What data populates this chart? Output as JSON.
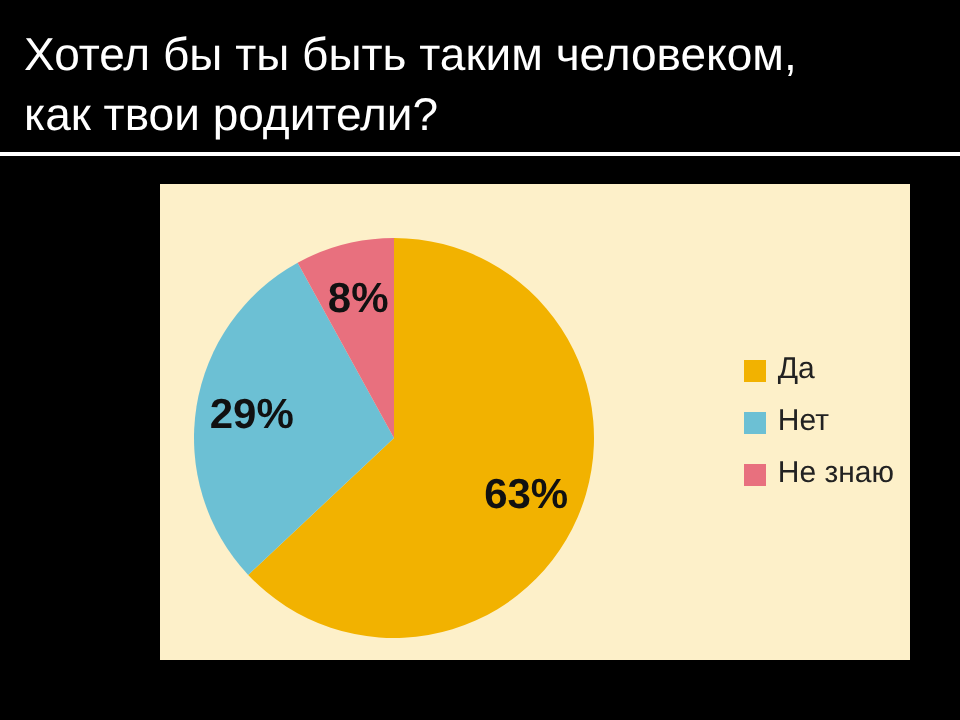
{
  "chart_data": {
    "type": "pie",
    "title": "Хотел бы ты быть таким человеком,\nкак твои родители?",
    "categories": [
      "Да",
      "Нет",
      "Не знаю"
    ],
    "values": [
      63,
      29,
      8
    ],
    "colors": [
      "#f2b200",
      "#6cc0d4",
      "#e8707e"
    ],
    "value_labels": [
      "63%",
      "29%",
      "8%"
    ],
    "legend": "right"
  }
}
